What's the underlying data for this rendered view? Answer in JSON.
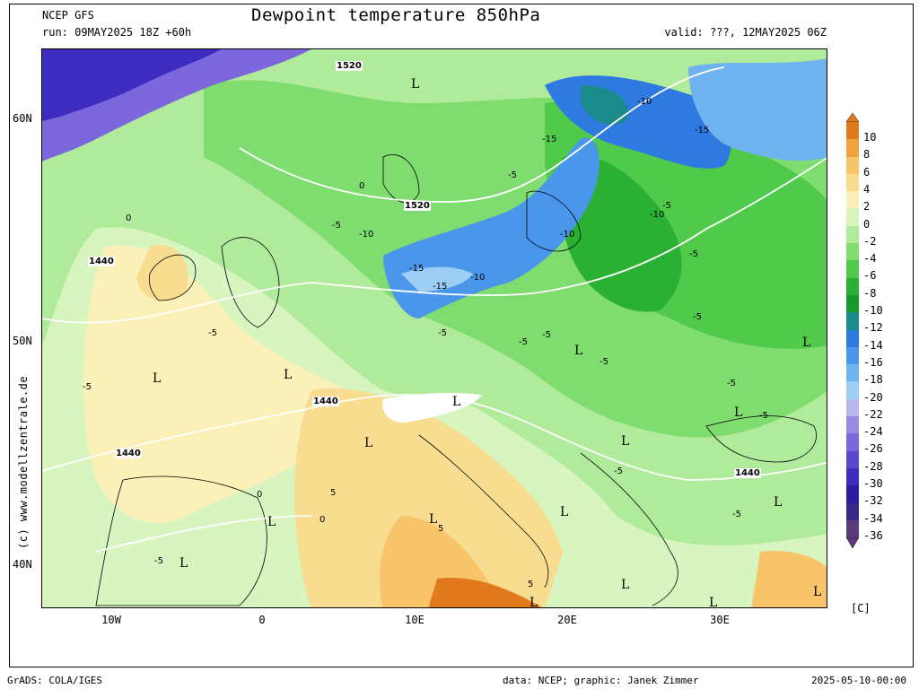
{
  "header": {
    "model": "NCEP GFS",
    "title": "Dewpoint temperature 850hPa",
    "run": "run: 09MAY2025 18Z +60h",
    "valid": "valid: ???, 12MAY2025 06Z"
  },
  "axes": {
    "lat_labels": [
      "60N",
      "50N",
      "40N"
    ],
    "lon_labels": [
      "10W",
      "0",
      "10E",
      "20E",
      "30E"
    ]
  },
  "colorbar": {
    "labels": [
      "10",
      "8",
      "6",
      "4",
      "2",
      "0",
      "-2",
      "-4",
      "-6",
      "-8",
      "-10",
      "-12",
      "-14",
      "-16",
      "-18",
      "-20",
      "-22",
      "-24",
      "-26",
      "-28",
      "-30",
      "-32",
      "-34",
      "-36"
    ],
    "colors": [
      "#e07a1c",
      "#f2a23a",
      "#f7c46a",
      "#f8dc90",
      "#faf0b8",
      "#d8f5c0",
      "#b0eb9c",
      "#7fdd6f",
      "#4fca4a",
      "#2ab032",
      "#179a2a",
      "#1a8a8a",
      "#2f7ae0",
      "#4a96ea",
      "#6fb2f0",
      "#9ccdf4",
      "#b8b8f0",
      "#9a8ae4",
      "#7c68dc",
      "#5a48d0",
      "#3e2cc0",
      "#2c1ca0",
      "#3a2888",
      "#5a3a7a"
    ],
    "unit": "[C]"
  },
  "contour_labels": {
    "geopotential": [
      "1520",
      "1520",
      "1440",
      "1440",
      "1440",
      "1440"
    ],
    "dewpoint": [
      "-5",
      "-10",
      "-15",
      "-15",
      "-10",
      "-5",
      "-5",
      "-10",
      "-5",
      "-15",
      "-10",
      "-5",
      "-5",
      "-15",
      "-10",
      "-5",
      "-5",
      "-5",
      "-5",
      "-5",
      "-5",
      "-5",
      "-5",
      "-5",
      "0",
      "0",
      "0",
      "0",
      "5",
      "5",
      "5",
      "-5"
    ]
  },
  "lows": [
    "L",
    "L",
    "L",
    "L",
    "L",
    "L",
    "L",
    "L",
    "L",
    "L",
    "L",
    "L",
    "L",
    "L",
    "L",
    "L",
    "L",
    "L"
  ],
  "credit": "(c) www.modellzentrale.de",
  "footer": {
    "software": "GrADS: COLA/IGES",
    "data": "data: NCEP; graphic: Janek Zimmer",
    "stamp": "2025-05-10-00:00"
  }
}
